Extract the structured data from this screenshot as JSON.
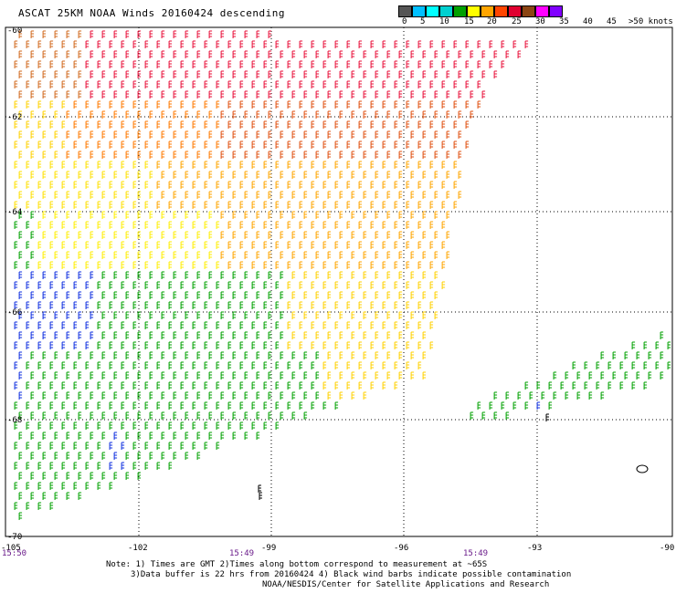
{
  "title": "ASCAT 25KM NOAA Winds 20160424 descending",
  "legend": {
    "labels": [
      "0",
      "5",
      "10",
      "15",
      "20",
      "25",
      "30",
      "35",
      "40",
      "45",
      ">50 knots"
    ],
    "colors": [
      "#555555",
      "#00bfff",
      "#00ffff",
      "#00d0d0",
      "#00a000",
      "#ffff00",
      "#ffa500",
      "#ff4500",
      "#e00030",
      "#8b4513",
      "#ff00ff",
      "#8000ff"
    ]
  },
  "axes": {
    "lat_labels": [
      "-60",
      "-62",
      "-64",
      "-66",
      "-68",
      "-70"
    ],
    "lon_labels": [
      "-105",
      "-102",
      "-99",
      "-96",
      "-93",
      "-90"
    ]
  },
  "times": [
    "15:50",
    "15:49",
    "15:49"
  ],
  "notes": {
    "line1": "Note: 1) Times are GMT 2)Times along bottom correspond to measurement at ~65S",
    "line2": "3)Data buffer is 22 hrs from 20160424 4) Black wind barbs indicate possible contamination",
    "line3": "NOAA/NESDIS/Center for Satellite Applications and Research"
  }
}
